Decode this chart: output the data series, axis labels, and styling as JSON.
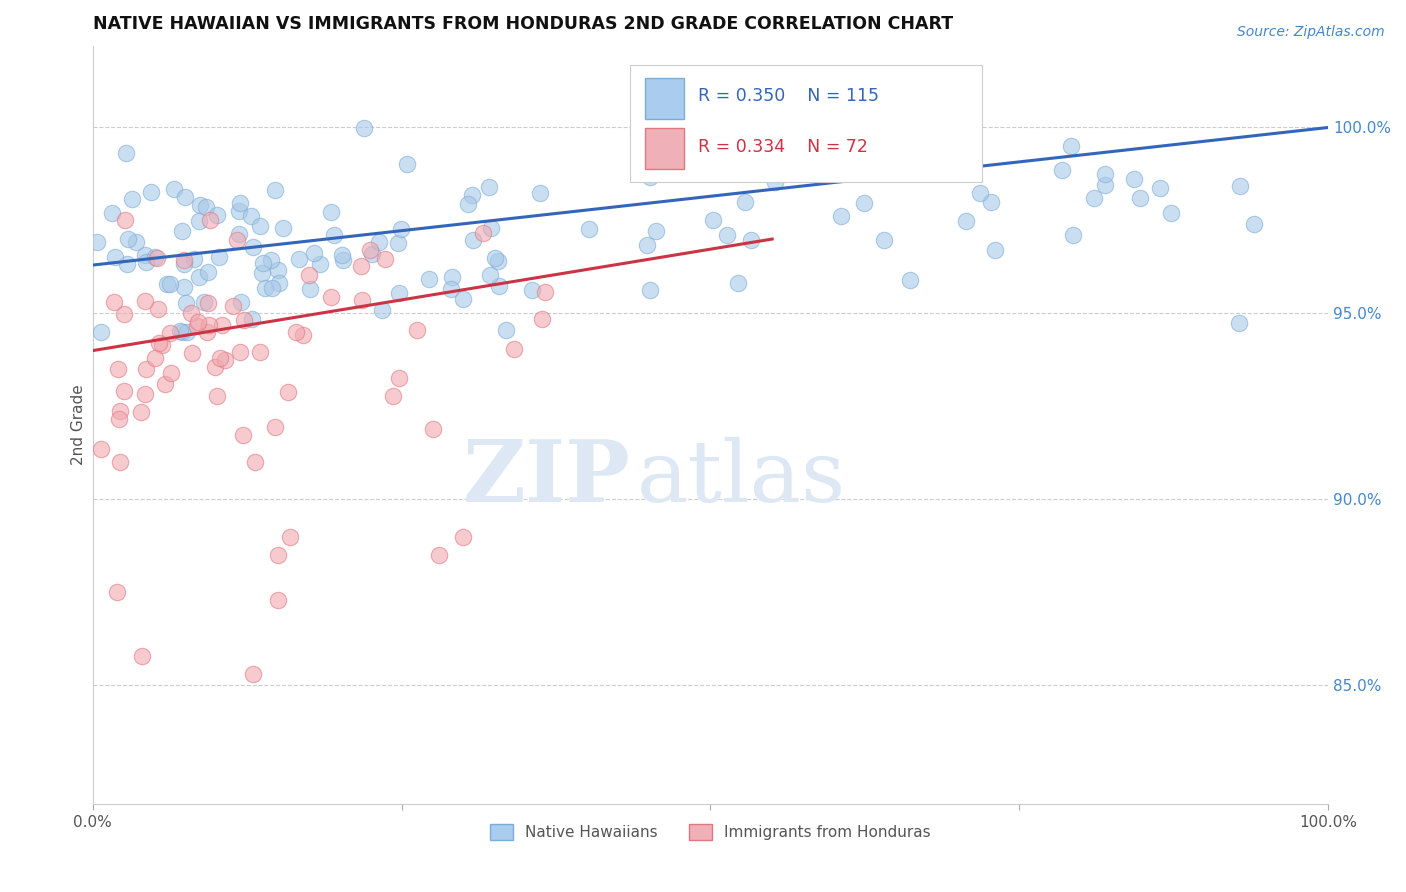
{
  "title": "NATIVE HAWAIIAN VS IMMIGRANTS FROM HONDURAS 2ND GRADE CORRELATION CHART",
  "source_text": "Source: ZipAtlas.com",
  "ylabel": "2nd Grade",
  "xlim": [
    0.0,
    1.0
  ],
  "ylim": [
    0.818,
    1.022
  ],
  "ytick_labels_right": [
    "85.0%",
    "90.0%",
    "95.0%",
    "100.0%"
  ],
  "ytick_vals_right": [
    0.85,
    0.9,
    0.95,
    1.0
  ],
  "r_blue": 0.35,
  "n_blue": 115,
  "r_pink": 0.334,
  "n_pink": 72,
  "blue_color": "#a8c8e8",
  "blue_edge_color": "#7dadd4",
  "pink_color": "#f0a8b0",
  "pink_edge_color": "#e07880",
  "trend_blue_color": "#3366bb",
  "trend_pink_color": "#cc3344",
  "grid_color": "#cccccc",
  "watermark_zip": "ZIP",
  "watermark_atlas": "atlas",
  "watermark_color": "#dde8f4",
  "legend_label_blue": "Native Hawaiians",
  "legend_label_pink": "Immigrants from Honduras",
  "blue_trend_x0": 0.0,
  "blue_trend_y0": 0.963,
  "blue_trend_x1": 1.0,
  "blue_trend_y1": 1.0,
  "pink_trend_x0": 0.0,
  "pink_trend_y0": 0.94,
  "pink_trend_x1": 0.55,
  "pink_trend_y1": 0.97
}
